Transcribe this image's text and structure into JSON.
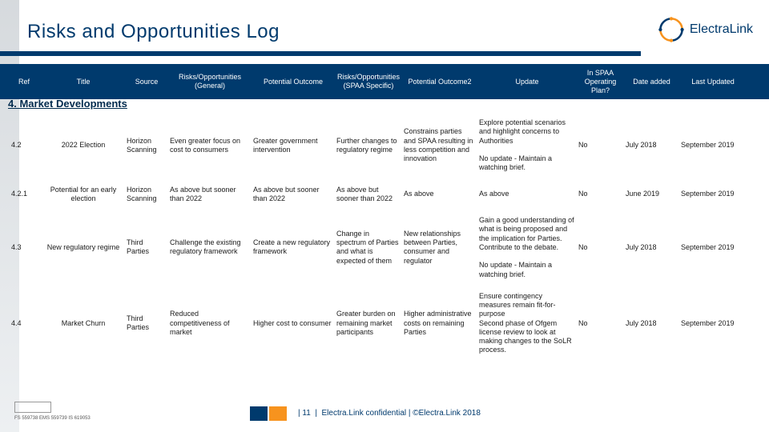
{
  "title": "Risks and Opportunities Log",
  "logo_text": "ElectraLink",
  "columns": [
    "Ref",
    "Title",
    "Source",
    "Risks/Opportunities (General)",
    "Potential Outcome",
    "Risks/Opportunities (SPAA Specific)",
    "Potential Outcome2",
    "Update",
    "In SPAA Operating Plan?",
    "Date added",
    "Last Updated"
  ],
  "section": "4. Market Developments",
  "rows": [
    {
      "ref": "4.2",
      "title": "2022 Election",
      "source": "Horizon Scanning",
      "ro_gen": "Even greater focus on cost to consumers",
      "pout": "Greater government intervention",
      "ro_spaa": "Further changes to regulatory regime",
      "pout2": "Constrains parties and SPAA resulting in less competition and innovation",
      "update": "Explore potential scenarios and highlight concerns to Authorities\n\nNo update - Maintain a watching brief.",
      "plan": "No",
      "added": "July 2018",
      "updated": "September 2019"
    },
    {
      "ref": "4.2.1",
      "title": "Potential for an early election",
      "source": "Horizon Scanning",
      "ro_gen": "As above but sooner than 2022",
      "pout": "As above but sooner than 2022",
      "ro_spaa": "As above but sooner than 2022",
      "pout2": "As above",
      "update": "As above",
      "plan": "No",
      "added": "June 2019",
      "updated": "September 2019"
    },
    {
      "ref": "4.3",
      "title": "New regulatory regime",
      "source": "Third Parties",
      "ro_gen": "Challenge the existing regulatory framework",
      "pout": "Create a new regulatory framework",
      "ro_spaa": "Change in spectrum of Parties and what is expected of them",
      "pout2": "New relationships between Parties, consumer and regulator",
      "update": "Gain a good understanding of what is being proposed and the implication for Parties. Contribute to the debate.\n\nNo update - Maintain a watching brief.",
      "plan": "No",
      "added": "July 2018",
      "updated": "September 2019"
    },
    {
      "ref": "4.4",
      "title": "Market Churn",
      "source": "Third Parties",
      "ro_gen": "Reduced competitiveness of market",
      "pout": "Higher cost to consumer",
      "ro_spaa": "Greater burden on remaining market participants",
      "pout2": "Higher administrative costs on remaining Parties",
      "update": "Ensure contingency measures remain fit-for-purpose\nSecond phase of Ofgem license review to look at making changes to the SoLR process.",
      "plan": "No",
      "added": "July 2018",
      "updated": "September 2019"
    }
  ],
  "footer": {
    "page": "11",
    "conf": "Electra.Link confidential | ©Electra.Link 2018",
    "fs": "FS 559738 EMS 559739 IS 619053"
  },
  "colors": {
    "brand": "#003a6d",
    "accent": "#f7931e"
  }
}
